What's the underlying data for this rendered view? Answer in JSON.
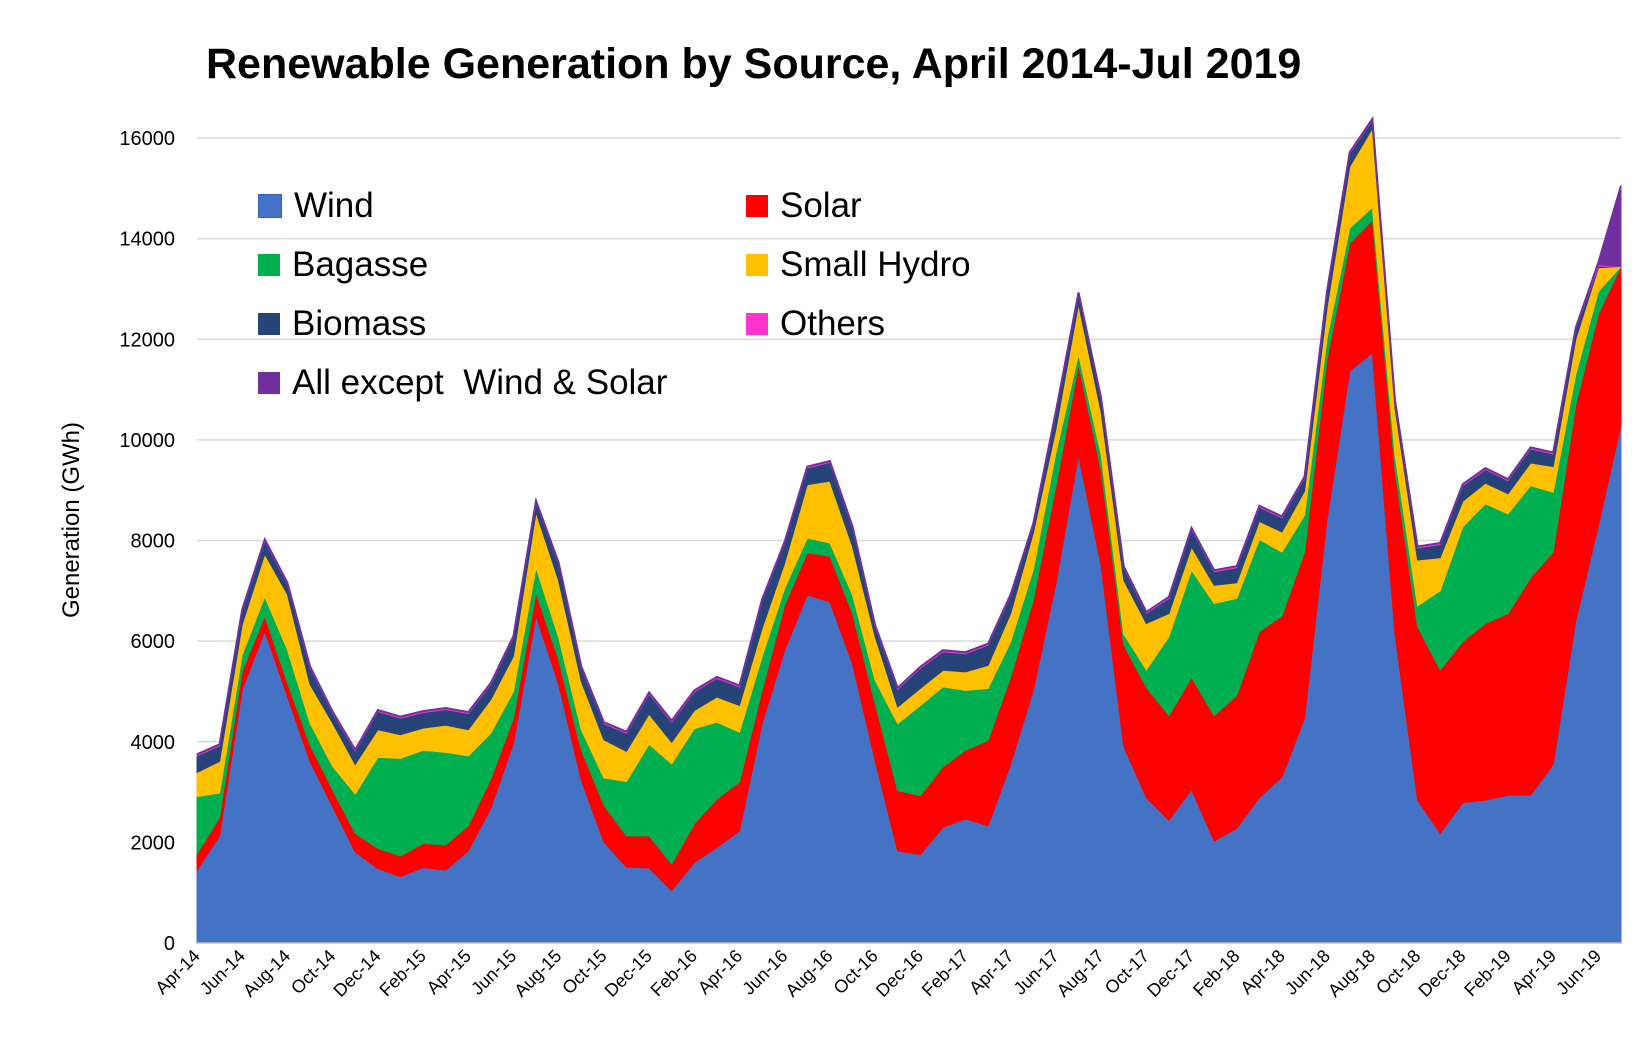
{
  "chart_data": {
    "type": "area",
    "stacked": true,
    "title": "Renewable Generation by Source, April 2014-Jul 2019",
    "xlabel": "",
    "ylabel": "Generation (GWh)",
    "ylim": [
      0,
      16000
    ],
    "yticks": [
      0,
      2000,
      4000,
      6000,
      8000,
      10000,
      12000,
      14000,
      16000
    ],
    "grid": "horizontal",
    "legend_position": "top-left",
    "categories": [
      "Apr-14",
      "May-14",
      "Jun-14",
      "Jul-14",
      "Aug-14",
      "Sep-14",
      "Oct-14",
      "Nov-14",
      "Dec-14",
      "Jan-15",
      "Feb-15",
      "Mar-15",
      "Apr-15",
      "May-15",
      "Jun-15",
      "Jul-15",
      "Aug-15",
      "Sep-15",
      "Oct-15",
      "Nov-15",
      "Dec-15",
      "Jan-16",
      "Feb-16",
      "Mar-16",
      "Apr-16",
      "May-16",
      "Jun-16",
      "Jul-16",
      "Aug-16",
      "Sep-16",
      "Oct-16",
      "Nov-16",
      "Dec-16",
      "Jan-17",
      "Feb-17",
      "Mar-17",
      "Apr-17",
      "May-17",
      "Jun-17",
      "Jul-17",
      "Aug-17",
      "Sep-17",
      "Oct-17",
      "Nov-17",
      "Dec-17",
      "Jan-18",
      "Feb-18",
      "Mar-18",
      "Apr-18",
      "May-18",
      "Jun-18",
      "Jul-18",
      "Aug-18",
      "Sep-18",
      "Oct-18",
      "Nov-18",
      "Dec-18",
      "Jan-19",
      "Feb-19",
      "Mar-19",
      "Apr-19",
      "May-19",
      "Jun-19",
      "Jul-19"
    ],
    "tick_labels": [
      "Apr-14",
      "Jun-14",
      "Aug-14",
      "Oct-14",
      "Dec-14",
      "Feb-15",
      "Apr-15",
      "Jun-15",
      "Aug-15",
      "Oct-15",
      "Dec-15",
      "Feb-16",
      "Apr-16",
      "Jun-16",
      "Aug-16",
      "Oct-16",
      "Dec-16",
      "Feb-17",
      "Apr-17",
      "Jun-17",
      "Aug-17",
      "Oct-17",
      "Dec-17",
      "Feb-18",
      "Apr-18",
      "Jun-18",
      "Aug-18",
      "Oct-18",
      "Dec-18",
      "Feb-19",
      "Apr-19",
      "Jun-19"
    ],
    "series": [
      {
        "name": "Wind",
        "color": "#4472C4",
        "values": [
          1450,
          2130,
          5040,
          6200,
          4900,
          3610,
          2710,
          1810,
          1480,
          1320,
          1500,
          1450,
          1830,
          2680,
          3970,
          6500,
          5140,
          3240,
          2010,
          1510,
          1490,
          1040,
          1600,
          1900,
          2230,
          4360,
          5820,
          6920,
          6780,
          5550,
          3630,
          1830,
          1760,
          2300,
          2470,
          2330,
          3560,
          5020,
          7150,
          9700,
          7500,
          3910,
          2890,
          2440,
          3050,
          2030,
          2280,
          2890,
          3300,
          4470,
          8430,
          11370,
          11730,
          6140,
          2840,
          2180,
          2790,
          2840,
          2940,
          2940,
          3550,
          6400,
          8300,
          10300
        ]
      },
      {
        "name": "Solar",
        "color": "#FF0000",
        "values": [
          320,
          370,
          360,
          300,
          270,
          330,
          330,
          370,
          400,
          410,
          480,
          500,
          500,
          580,
          500,
          460,
          490,
          600,
          730,
          620,
          640,
          530,
          770,
          960,
          970,
          660,
          900,
          840,
          910,
          1000,
          1130,
          1200,
          1170,
          1200,
          1360,
          1700,
          1730,
          1800,
          1930,
          1800,
          1900,
          2010,
          2190,
          2080,
          2230,
          2490,
          2640,
          3300,
          3200,
          3300,
          3190,
          2540,
          2640,
          3250,
          3450,
          3250,
          3200,
          3510,
          3610,
          4320,
          4220,
          4300,
          4200,
          3150
        ]
      },
      {
        "name": "Bagasse",
        "color": "#00B050",
        "values": [
          1140,
          480,
          330,
          380,
          660,
          430,
          470,
          780,
          1810,
          1940,
          1850,
          1840,
          1390,
          910,
          530,
          500,
          440,
          400,
          540,
          1080,
          1820,
          1990,
          1890,
          1530,
          990,
          670,
          330,
          290,
          260,
          370,
          460,
          1330,
          1790,
          1590,
          1190,
          1030,
          700,
          600,
          660,
          200,
          300,
          220,
          350,
          1570,
          2130,
          2230,
          1930,
          1830,
          1270,
          730,
          410,
          300,
          250,
          310,
          410,
          1570,
          2280,
          2380,
          1980,
          1830,
          1190,
          600,
          450,
          0
        ]
      },
      {
        "name": "Small Hydro",
        "color": "#FFC000",
        "values": [
          480,
          630,
          600,
          850,
          1100,
          770,
          860,
          590,
          550,
          470,
          440,
          540,
          520,
          670,
          700,
          1100,
          1130,
          960,
          760,
          600,
          600,
          430,
          360,
          500,
          530,
          560,
          500,
          1060,
          1230,
          960,
          870,
          330,
          340,
          330,
          370,
          460,
          560,
          730,
          470,
          1000,
          850,
          1070,
          920,
          460,
          460,
          360,
          310,
          360,
          400,
          480,
          610,
          1220,
          1570,
          940,
          910,
          660,
          510,
          410,
          400,
          450,
          510,
          700,
          470,
          0
        ]
      },
      {
        "name": "Biomass",
        "color": "#264478",
        "values": [
          330,
          310,
          270,
          260,
          200,
          330,
          200,
          260,
          360,
          330,
          310,
          310,
          320,
          300,
          370,
          200,
          330,
          270,
          320,
          360,
          400,
          400,
          370,
          370,
          370,
          550,
          400,
          330,
          370,
          370,
          200,
          350,
          400,
          370,
          360,
          400,
          350,
          160,
          330,
          200,
          250,
          250,
          200,
          300,
          350,
          270,
          300,
          280,
          280,
          260,
          300,
          260,
          160,
          120,
          240,
          260,
          310,
          270,
          260,
          280,
          250,
          200,
          30,
          0
        ]
      },
      {
        "name": "Others",
        "color": "#FF33CC",
        "values": [
          30,
          30,
          30,
          30,
          30,
          30,
          30,
          30,
          30,
          30,
          30,
          30,
          30,
          30,
          30,
          30,
          30,
          30,
          30,
          30,
          30,
          30,
          30,
          30,
          30,
          30,
          30,
          30,
          30,
          30,
          30,
          30,
          30,
          30,
          30,
          30,
          30,
          30,
          30,
          30,
          30,
          30,
          30,
          30,
          30,
          30,
          30,
          30,
          30,
          30,
          30,
          30,
          30,
          30,
          30,
          30,
          30,
          30,
          30,
          30,
          30,
          30,
          30,
          0
        ]
      },
      {
        "name": "All except  Wind & Solar",
        "color": "#7030A0",
        "values": [
          0,
          0,
          0,
          0,
          0,
          0,
          0,
          0,
          0,
          0,
          0,
          0,
          0,
          0,
          0,
          0,
          0,
          0,
          0,
          0,
          0,
          0,
          0,
          0,
          0,
          0,
          0,
          0,
          0,
          0,
          0,
          0,
          0,
          0,
          0,
          0,
          0,
          0,
          0,
          0,
          0,
          0,
          0,
          0,
          0,
          0,
          0,
          0,
          0,
          0,
          0,
          0,
          0,
          0,
          0,
          0,
          0,
          0,
          0,
          0,
          0,
          0,
          50,
          1600
        ]
      }
    ]
  }
}
